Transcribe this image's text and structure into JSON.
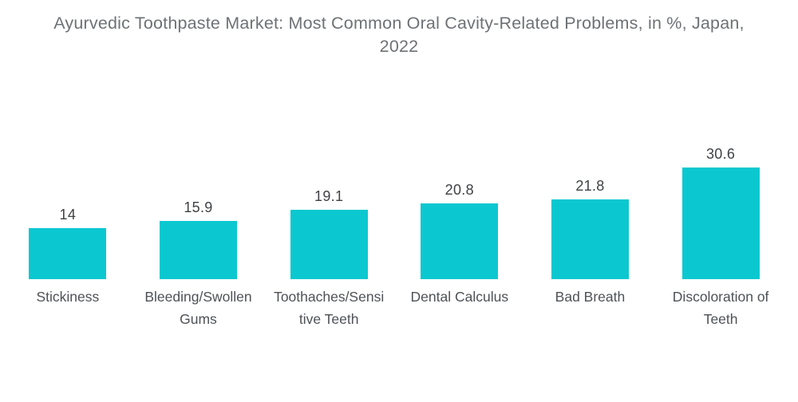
{
  "page": {
    "background": "#ffffff"
  },
  "title_lines": [
    "Ayurvedic Toothpaste Market: Most Common Oral Cavity-Related Problems, in %, Japan,",
    "2022"
  ],
  "colors": {
    "bar": "#0bc8d0",
    "title_text": "#6e7275",
    "value_text": "#3f4245",
    "category_text": "#4e5256",
    "background": "#ffffff"
  },
  "chart_data": {
    "type": "bar",
    "title": "Ayurvedic Toothpaste Market: Most Common Oral Cavity-Related Problems, in %, Japan, 2022",
    "categories": [
      "Stickiness",
      "Bleeding/Swollen Gums",
      "Toothaches/Sensitive Teeth",
      "Dental Calculus",
      "Bad Breath",
      "Discoloration of Teeth"
    ],
    "category_label_lines": [
      [
        "Stickiness"
      ],
      [
        "Bleeding/Swollen",
        "Gums"
      ],
      [
        "Toothaches/Sensi",
        "tive Teeth"
      ],
      [
        "Dental Calculus"
      ],
      [
        "Bad Breath"
      ],
      [
        "Discoloration of",
        "Teeth"
      ]
    ],
    "values": [
      14,
      15.9,
      19.1,
      20.8,
      21.8,
      30.6
    ],
    "value_labels": [
      "14",
      "15.9",
      "19.1",
      "20.8",
      "21.8",
      "30.6"
    ],
    "xlabel": "",
    "ylabel": "",
    "unit": "%",
    "ylim": [
      0,
      35
    ],
    "grid": false,
    "legend": "none",
    "axes_visible": false,
    "bar_color": "#0bc8d0"
  }
}
